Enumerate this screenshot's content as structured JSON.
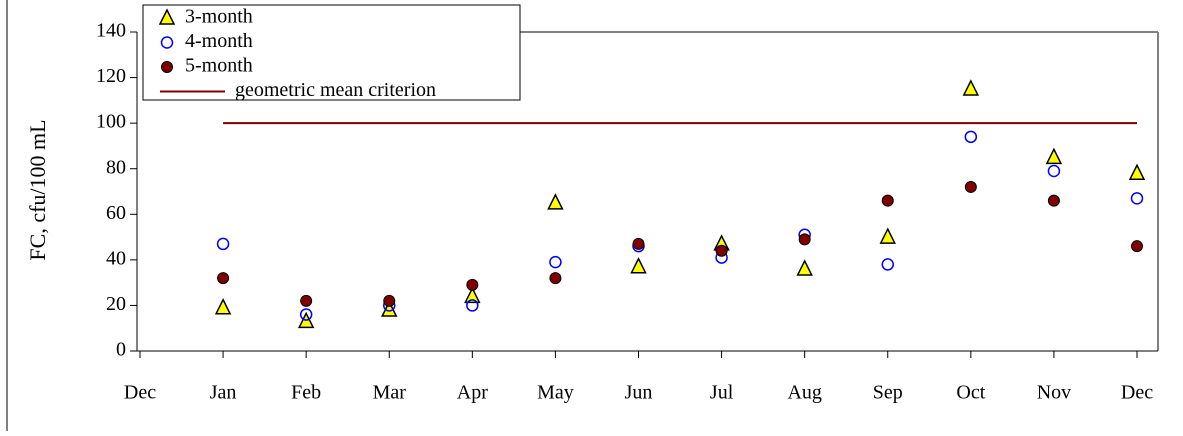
{
  "chart_data": {
    "type": "scatter",
    "y_label": "FC, cfu/100 mL",
    "categories": [
      "Dec",
      "Jan",
      "Feb",
      "Mar",
      "Apr",
      "May",
      "Jun",
      "Jul",
      "Aug",
      "Sep",
      "Oct",
      "Nov",
      "Dec"
    ],
    "ylim": [
      0,
      140
    ],
    "yticks": [
      0,
      20,
      40,
      60,
      80,
      100,
      120,
      140
    ],
    "legend": "top-left",
    "series": [
      {
        "name": "3-month",
        "marker": "triangle",
        "color": "#ffff00",
        "values": [
          null,
          19,
          13,
          18,
          24,
          65,
          37,
          47,
          36,
          50,
          115,
          85,
          78
        ]
      },
      {
        "name": "4-month",
        "marker": "open-circle",
        "color": "#0000ff",
        "values": [
          null,
          47,
          16,
          20,
          20,
          39,
          46,
          41,
          51,
          38,
          94,
          79,
          67
        ]
      },
      {
        "name": "5-month",
        "marker": "circle",
        "color": "#800000",
        "values": [
          null,
          32,
          22,
          22,
          29,
          32,
          47,
          44,
          49,
          66,
          72,
          66,
          46
        ]
      },
      {
        "name": "geometric mean criterion",
        "marker": "line",
        "color": "#800000",
        "values": [
          null,
          100,
          100,
          100,
          100,
          100,
          100,
          100,
          100,
          100,
          100,
          100,
          100
        ]
      }
    ]
  }
}
